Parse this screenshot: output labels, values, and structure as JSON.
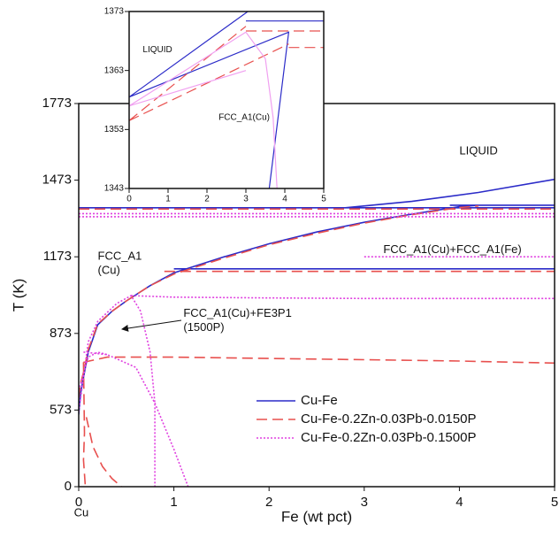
{
  "chart_data": [
    {
      "type": "line",
      "xlabel": "Fe (wt pct)",
      "ylabel": "T (K)",
      "xlim": [
        0,
        5
      ],
      "xticks": [
        0,
        1,
        2,
        3,
        4,
        5
      ],
      "ylim": [
        0,
        1773
      ],
      "yticks": [
        0,
        573,
        873,
        1173,
        1473,
        1773
      ],
      "legend": "lower right",
      "annotations": [
        {
          "text": [
            "LIQUID"
          ],
          "x": 4.0,
          "y": 1585
        },
        {
          "text": [
            "FCC_A1",
            "(Cu)"
          ],
          "x": 0.2,
          "y": 1173
        },
        {
          "text": [
            "FCC_A1(Cu)+FCC_A1(Fe)"
          ],
          "x": 3.2,
          "y": 1200
        },
        {
          "text": [
            "FCC_A1(Cu)+FE3P1",
            "(1500P)"
          ],
          "x": 1.1,
          "y": 950
        },
        {
          "text": [
            "Cu"
          ],
          "x": -0.05,
          "y": -200
        }
      ],
      "series": [
        {
          "name": "Cu-Fe",
          "color": "#2b2bc8",
          "dash": "solid",
          "x": [
            0,
            5,
            null,
            2.8,
            3.5,
            4.2,
            5,
            null,
            3.9,
            5,
            null,
            0,
            0.02,
            0.05,
            0.1,
            0.2,
            0.35,
            0.5,
            0.75,
            1,
            1.5,
            2,
            2.5,
            3,
            3.5,
            4,
            4.2,
            null,
            1,
            5
          ],
          "values": [
            1365,
            1365,
            null,
            1365,
            1390,
            1425,
            1476,
            null,
            1375,
            1375,
            null,
            540,
            640,
            700,
            800,
            907,
            960,
            1000,
            1060,
            1110,
            1170,
            1224,
            1270,
            1308,
            1340,
            1369,
            1375,
            null,
            1126,
            1126
          ]
        },
        {
          "name": "Cu-Fe-0.2Zn-0.03Pb-0.0150P",
          "color": "#e8504e",
          "dash": "dashed",
          "x": [
            0,
            5,
            null,
            0,
            0.02,
            0.05,
            0.1,
            0.2,
            0.35,
            0.5,
            0.75,
            1,
            1.5,
            2,
            2.5,
            3,
            3.5,
            4,
            4.2,
            null,
            0.9,
            5,
            null,
            0.05,
            0.3,
            1,
            2,
            3,
            4,
            5,
            null,
            0.05,
            0.06,
            0.05,
            0.07,
            null,
            0.08,
            0.15,
            0.25,
            0.35,
            0.45
          ],
          "values": [
            1360,
            1360,
            null,
            620,
            680,
            720,
            810,
            910,
            960,
            1000,
            1060,
            1105,
            1165,
            1220,
            1265,
            1305,
            1338,
            1366,
            1372,
            null,
            1116,
            1116,
            null,
            760,
            780,
            780,
            775,
            770,
            765,
            757,
            null,
            760,
            400,
            200,
            0,
            null,
            520,
            300,
            150,
            60,
            0
          ]
        },
        {
          "name": "Cu-Fe-0.2Zn-0.03Pb-0.1500P",
          "color": "#e040e0",
          "dash": "dotted",
          "x": [
            0,
            5,
            null,
            0,
            5,
            null,
            3,
            5,
            null,
            0.55,
            1,
            2,
            3,
            4,
            5,
            null,
            0,
            0.05,
            0.1,
            0.2,
            0.4,
            0.55,
            0.65,
            0.75,
            0.8,
            0.8,
            null,
            0.05,
            0.3,
            0.6,
            0.8,
            1,
            1.15,
            null,
            0,
            0.1,
            0.2,
            0.3
          ],
          "values": [
            1342,
            1342,
            null,
            1330,
            1330,
            null,
            1173,
            1173,
            null,
            1021,
            1015,
            1012,
            1010,
            1010,
            1010,
            null,
            560,
            700,
            840,
            920,
            990,
            1021,
            960,
            800,
            600,
            0,
            null,
            800,
            790,
            740,
            600,
            280,
            0,
            null,
            650,
            780,
            800,
            790
          ]
        }
      ]
    },
    {
      "type": "line",
      "xlim": [
        0,
        5
      ],
      "xticks": [
        0,
        1,
        2,
        3,
        4,
        5
      ],
      "ylim": [
        1343,
        1373
      ],
      "yticks": [
        1343,
        1353,
        1363,
        1373
      ],
      "annotations": [
        {
          "text": [
            "LIQUID"
          ],
          "x": 0.35,
          "y": 1366.5
        },
        {
          "text": [
            "FCC_A1(Cu)"
          ],
          "x": 2.3,
          "y": 1355
        }
      ],
      "series": [
        {
          "color": "#2b2bc8",
          "dash": "solid",
          "x": [
            0,
            3.05,
            null,
            0,
            4.1,
            3.6,
            null,
            3,
            5
          ],
          "values": [
            1358.5,
            1373,
            null,
            1358.5,
            1369.5,
            1343,
            null,
            1371.4,
            1371.4
          ]
        },
        {
          "color": "#e8504e",
          "dash": "dashed",
          "x": [
            0,
            3,
            null,
            0,
            4.1,
            null,
            3,
            5,
            null,
            4.1,
            5
          ],
          "values": [
            1354.5,
            1370.5,
            null,
            1354.5,
            1367.5,
            null,
            1369.7,
            1369.7,
            null,
            1366.9,
            1366.9
          ]
        },
        {
          "color": "#f0a0f0",
          "dash": "solid",
          "x": [
            0,
            3,
            null,
            0,
            3,
            null,
            3,
            3.5,
            3.7,
            3.8
          ],
          "values": [
            1357,
            1369.5,
            null,
            1357,
            1363,
            null,
            1369.5,
            1365,
            1355,
            1343
          ]
        }
      ]
    }
  ]
}
